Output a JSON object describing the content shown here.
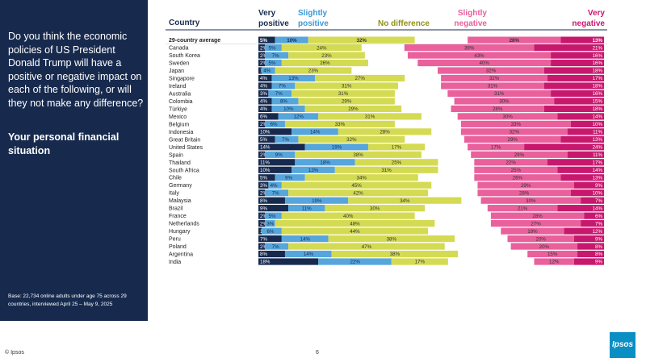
{
  "sidebar": {
    "question": "Do you think the economic policies of US President Donald Trump will have a positive or negative impact on each of the following, or will they not make any difference?",
    "subtitle": "Your personal financial situation",
    "base": "Base: 22,734 online adults under age 75 across 29 countries, interviewed April 25 – May 9, 2025"
  },
  "footer": {
    "copyright": "© Ipsos",
    "page": "6",
    "logo": "Ipsos"
  },
  "colors": {
    "very_positive": "#172a4e",
    "slightly_positive": "#56a6dc",
    "no_difference": "#d4db52",
    "slightly_negative": "#e9609c",
    "very_negative": "#c8186e",
    "gap": "#ffffff"
  },
  "chart_data": {
    "type": "bar",
    "stacked": true,
    "orientation": "horizontal",
    "country_header": "Country",
    "legend": [
      {
        "line1": "Very",
        "line2": "positive",
        "color": "#172a4e"
      },
      {
        "line1": "Slightly",
        "line2": "positive",
        "color": "#3a9ad9"
      },
      {
        "line1": "No difference",
        "line2": "",
        "color": "#8f8f1a"
      },
      {
        "line1": "Slightly",
        "line2": "negative",
        "color": "#e9609c"
      },
      {
        "line1": "Very",
        "line2": "negative",
        "color": "#c8186e"
      }
    ],
    "categories": [
      "29-country average",
      "Canada",
      "South Korea",
      "Sweden",
      "Japan",
      "Singapore",
      "Ireland",
      "Australia",
      "Colombia",
      "Türkiye",
      "Mexico",
      "Belgium",
      "Indonesia",
      "Great Britain",
      "United States",
      "Spain",
      "Thailand",
      "South Africa",
      "Chile",
      "Germany",
      "Italy",
      "Malaysia",
      "Brazil",
      "France",
      "Netherlands",
      "Hungary",
      "Peru",
      "Poland",
      "Argentina",
      "India"
    ],
    "series": [
      {
        "name": "Very positive",
        "values": [
          5,
          2,
          2,
          2,
          1,
          4,
          4,
          3,
          4,
          4,
          6,
          2,
          10,
          5,
          14,
          2,
          11,
          10,
          5,
          3,
          2,
          8,
          9,
          2,
          2,
          1,
          7,
          2,
          8,
          18
        ]
      },
      {
        "name": "Slightly positive",
        "values": [
          10,
          5,
          7,
          5,
          4,
          13,
          7,
          7,
          8,
          10,
          12,
          6,
          14,
          7,
          19,
          9,
          18,
          13,
          9,
          4,
          7,
          19,
          11,
          5,
          3,
          6,
          14,
          7,
          14,
          22
        ]
      },
      {
        "name": "No difference",
        "values": [
          32,
          24,
          23,
          26,
          23,
          27,
          31,
          31,
          29,
          29,
          31,
          33,
          28,
          32,
          17,
          38,
          25,
          31,
          34,
          45,
          42,
          34,
          30,
          40,
          48,
          44,
          38,
          47,
          38,
          17
        ]
      },
      {
        "name": "Slightly negative",
        "values": [
          28,
          39,
          43,
          40,
          32,
          32,
          31,
          31,
          30,
          28,
          30,
          33,
          32,
          29,
          17,
          29,
          22,
          25,
          26,
          29,
          28,
          30,
          21,
          28,
          27,
          19,
          20,
          20,
          15,
          12
        ]
      },
      {
        "name": "Very negative",
        "values": [
          13,
          21,
          16,
          16,
          18,
          17,
          18,
          16,
          15,
          18,
          14,
          10,
          11,
          13,
          24,
          11,
          17,
          14,
          13,
          9,
          10,
          7,
          14,
          6,
          7,
          12,
          9,
          8,
          8,
          9
        ]
      }
    ],
    "label_format": "{v}%",
    "xlim": [
      0,
      100
    ]
  }
}
